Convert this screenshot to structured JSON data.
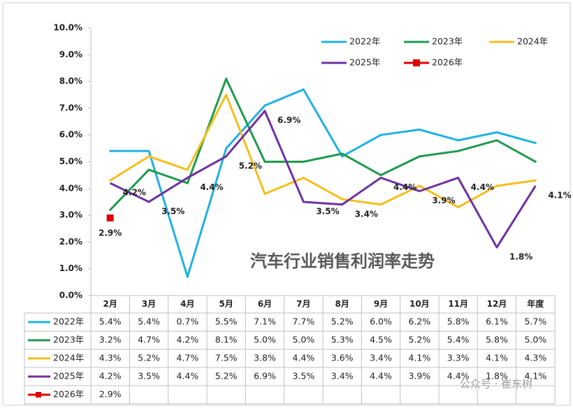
{
  "chart_data": {
    "type": "line",
    "title": "汽车行业销售利润率走势",
    "watermark": "公众号 · 崔东树",
    "categories": [
      "2月",
      "3月",
      "4月",
      "5月",
      "6月",
      "7月",
      "8月",
      "9月",
      "10月",
      "11月",
      "12月",
      "年度"
    ],
    "ylim": [
      0,
      10
    ],
    "yticks": [
      {
        "value": 0,
        "label": "0.0%"
      },
      {
        "value": 1,
        "label": "1.0%"
      },
      {
        "value": 2,
        "label": "2.0%"
      },
      {
        "value": 3,
        "label": "3.0%"
      },
      {
        "value": 4,
        "label": "4.0%"
      },
      {
        "value": 5,
        "label": "5.0%"
      },
      {
        "value": 6,
        "label": "6.0%"
      },
      {
        "value": 7,
        "label": "7.0%"
      },
      {
        "value": 8,
        "label": "8.0%"
      },
      {
        "value": 9,
        "label": "9.0%"
      },
      {
        "value": 10,
        "label": "10.0%"
      }
    ],
    "grid": false,
    "legend": "top-right",
    "series": [
      {
        "name": "2022年",
        "color": "#1fb1e3",
        "values": [
          5.4,
          5.4,
          0.7,
          5.5,
          7.1,
          7.7,
          5.2,
          6.0,
          6.2,
          5.8,
          6.1,
          5.7
        ],
        "value_labels": [
          "5.4%",
          "5.4%",
          "0.7%",
          "5.5%",
          "7.1%",
          "7.7%",
          "5.2%",
          "6.0%",
          "6.2%",
          "5.8%",
          "6.1%",
          "5.7%"
        ]
      },
      {
        "name": "2023年",
        "color": "#1e9a4c",
        "values": [
          3.2,
          4.7,
          4.2,
          8.1,
          5.0,
          5.0,
          5.3,
          4.5,
          5.2,
          5.4,
          5.8,
          5.0
        ],
        "value_labels": [
          "3.2%",
          "4.7%",
          "4.2%",
          "8.1%",
          "5.0%",
          "5.0%",
          "5.3%",
          "4.5%",
          "5.2%",
          "5.4%",
          "5.8%",
          "5.0%"
        ]
      },
      {
        "name": "2024年",
        "color": "#f4bf1c",
        "values": [
          4.3,
          5.2,
          4.7,
          7.5,
          3.8,
          4.4,
          3.6,
          3.4,
          4.1,
          3.3,
          4.1,
          4.3
        ],
        "value_labels": [
          "4.3%",
          "5.2%",
          "4.7%",
          "7.5%",
          "3.8%",
          "4.4%",
          "3.6%",
          "3.4%",
          "4.1%",
          "3.3%",
          "4.1%",
          "4.3%"
        ]
      },
      {
        "name": "2025年",
        "color": "#7030a0",
        "values": [
          4.2,
          3.5,
          4.4,
          5.2,
          6.9,
          3.5,
          3.4,
          4.4,
          3.9,
          4.4,
          1.8,
          4.1
        ],
        "value_labels": [
          "4.2%",
          "3.5%",
          "4.4%",
          "5.2%",
          "6.9%",
          "3.5%",
          "3.4%",
          "4.4%",
          "3.9%",
          "4.4%",
          "1.8%",
          "4.1%"
        ],
        "data_labels": true
      },
      {
        "name": "2026年",
        "color": "#e00000",
        "marker": "square",
        "values": [
          2.9,
          null,
          null,
          null,
          null,
          null,
          null,
          null,
          null,
          null,
          null,
          null
        ],
        "value_labels": [
          "2.9%",
          null,
          null,
          null,
          null,
          null,
          null,
          null,
          null,
          null,
          null,
          null
        ],
        "data_labels": true
      }
    ]
  }
}
